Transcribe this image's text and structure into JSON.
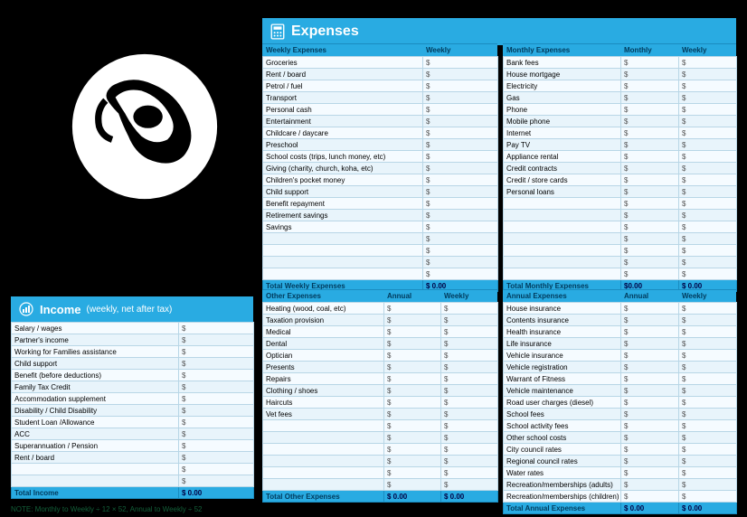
{
  "note": "NOTE: Monthly to Weekly ÷ 12 × 52, Annual to Weekly ÷ 52",
  "income": {
    "title": "Income",
    "subtitle": "(weekly, net after tax)",
    "rows": [
      "Salary / wages",
      "Partner's income",
      "Working for Families assistance",
      "Child support",
      "Benefit (before deductions)",
      "Family Tax Credit",
      "Accommodation supplement",
      "Disability / Child Disability",
      "Student Loan /Allowance",
      "ACC",
      "Superannuation / Pension",
      "Rent / board",
      "",
      ""
    ],
    "total_label": "Total Income",
    "total_value": "$ 0.00",
    "currency": "$"
  },
  "expenses_title": "Expenses",
  "weekly": {
    "header": "Weekly Expenses",
    "col": "Weekly",
    "rows": [
      "Groceries",
      "Rent / board",
      "Petrol / fuel",
      "Transport",
      "Personal cash",
      "Entertainment",
      "Childcare / daycare",
      "Preschool",
      "School costs (trips, lunch money, etc)",
      "Giving (charity, church, koha, etc)",
      "Children's pocket money",
      "Child support",
      "Benefit repayment",
      "Retirement savings",
      "Savings",
      "",
      "",
      "",
      ""
    ],
    "total_label": "Total Weekly Expenses",
    "total_value": "$ 0.00",
    "currency": "$"
  },
  "monthly": {
    "header": "Monthly Expenses",
    "col1": "Monthly",
    "col2": "Weekly",
    "rows": [
      "Bank fees",
      "House mortgage",
      "Electricity",
      "Gas",
      "Phone",
      "Mobile phone",
      "Internet",
      "Pay TV",
      "Appliance rental",
      "Credit contracts",
      "Credit / store cards",
      "Personal loans",
      "",
      "",
      "",
      "",
      "",
      "",
      ""
    ],
    "total_label": "Total Monthly Expenses",
    "total1": "$0.00",
    "total2": "$ 0.00",
    "currency": "$"
  },
  "other": {
    "header": "Other Expenses",
    "col1": "Annual",
    "col2": "Weekly",
    "rows": [
      "Heating (wood, coal, etc)",
      "Taxation provision",
      "Medical",
      "Dental",
      "Optician",
      "Presents",
      "Repairs",
      "Clothing / shoes",
      "Haircuts",
      "Vet fees",
      "",
      "",
      "",
      "",
      "",
      ""
    ],
    "total_label": "Total Other Expenses",
    "total1": "$ 0.00",
    "total2": "$ 0.00",
    "currency": "$"
  },
  "annual": {
    "header": "Annual Expenses",
    "col1": "Annual",
    "col2": "Weekly",
    "rows": [
      "House insurance",
      "Contents insurance",
      "Health insurance",
      "Life insurance",
      "Vehicle insurance",
      "Vehicle registration",
      "Warrant of Fitness",
      "Vehicle maintenance",
      "Road user charges (diesel)",
      "School fees",
      "School activity fees",
      "Other school costs",
      "City council rates",
      "Regional council rates",
      "Water rates",
      "Recreation/memberships (adults)",
      "Recreation/memberships (children)"
    ],
    "total_label": "Total Annual Expenses",
    "total1": "$ 0.00",
    "total2": "$ 0.00",
    "currency": "$"
  }
}
